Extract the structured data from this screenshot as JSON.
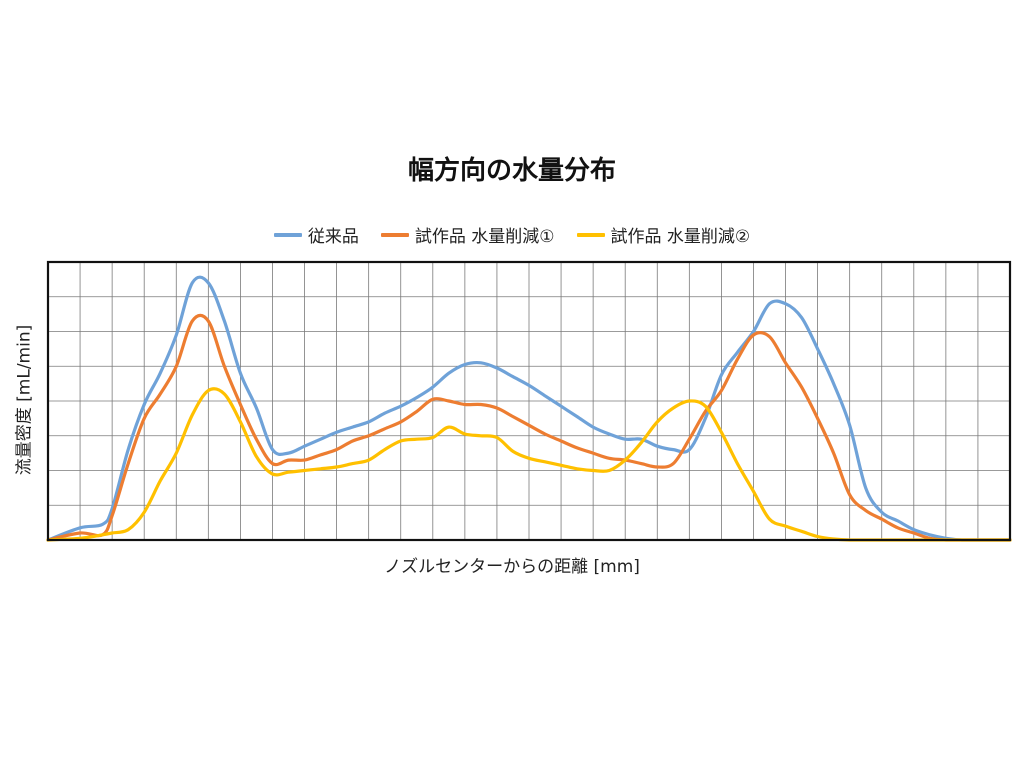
{
  "chart_data": {
    "type": "line",
    "title": "幅方向の水量分布",
    "xlabel": "ノズルセンターからの距離 [mm]",
    "ylabel": "流量密度 [mL/min]",
    "xlim": [
      0,
      30
    ],
    "ylim": [
      0,
      8
    ],
    "grid": true,
    "legend_position": "top",
    "series": [
      {
        "name": "従来品",
        "color": "#6fa2d8",
        "x": [
          0,
          1,
          1.7,
          2,
          2.5,
          3,
          3.5,
          4,
          4.5,
          5,
          5.5,
          6,
          6.5,
          7,
          7.5,
          8,
          8.5,
          9,
          9.5,
          10,
          10.5,
          11,
          11.5,
          12,
          12.5,
          13,
          13.5,
          14,
          14.5,
          15,
          15.5,
          16,
          16.5,
          17,
          17.5,
          18,
          18.5,
          19,
          19.5,
          20,
          20.5,
          21,
          21.5,
          22,
          22.5,
          23,
          23.5,
          24,
          24.5,
          25,
          25.5,
          26,
          26.5,
          27,
          27.5,
          28,
          28.5,
          29,
          29.5,
          30
        ],
        "y": [
          0,
          0.35,
          0.45,
          0.9,
          2.6,
          3.9,
          4.8,
          5.9,
          7.4,
          7.4,
          6.3,
          4.8,
          3.8,
          2.6,
          2.5,
          2.7,
          2.9,
          3.1,
          3.25,
          3.4,
          3.65,
          3.85,
          4.1,
          4.4,
          4.8,
          5.05,
          5.1,
          4.95,
          4.7,
          4.45,
          4.15,
          3.85,
          3.55,
          3.25,
          3.05,
          2.9,
          2.9,
          2.7,
          2.6,
          2.6,
          3.5,
          4.75,
          5.4,
          6.0,
          6.8,
          6.8,
          6.4,
          5.5,
          4.5,
          3.3,
          1.5,
          0.8,
          0.55,
          0.3,
          0.15,
          0.05,
          0,
          0,
          0,
          0
        ],
        "x_trim": 30
      },
      {
        "name": "試作品 水量削減①",
        "color": "#ed7d31",
        "x": [
          0,
          1,
          1.7,
          2,
          2.5,
          3,
          3.5,
          4,
          4.5,
          5,
          5.5,
          6,
          6.5,
          7,
          7.5,
          8,
          8.5,
          9,
          9.5,
          10,
          10.5,
          11,
          11.5,
          12,
          12.5,
          13,
          13.5,
          14,
          14.5,
          15,
          15.5,
          16,
          16.5,
          17,
          17.5,
          18,
          18.5,
          19,
          19.5,
          20,
          20.5,
          21,
          21.5,
          22,
          22.5,
          23,
          23.5,
          24,
          24.5,
          25,
          25.5,
          26,
          26.5,
          27,
          27.5,
          28,
          28.5,
          29,
          29.5,
          30
        ],
        "y": [
          0,
          0.2,
          0.15,
          0.7,
          2.2,
          3.5,
          4.2,
          5.0,
          6.3,
          6.3,
          5.0,
          3.9,
          2.9,
          2.2,
          2.3,
          2.3,
          2.45,
          2.6,
          2.85,
          3.0,
          3.2,
          3.4,
          3.7,
          4.05,
          4.0,
          3.9,
          3.9,
          3.8,
          3.55,
          3.3,
          3.05,
          2.85,
          2.65,
          2.5,
          2.35,
          2.3,
          2.2,
          2.1,
          2.2,
          2.9,
          3.7,
          4.3,
          5.2,
          5.9,
          5.85,
          5.1,
          4.4,
          3.5,
          2.5,
          1.3,
          0.85,
          0.6,
          0.35,
          0.2,
          0.05,
          0,
          0,
          0,
          0,
          0
        ],
        "x_trim": 30
      },
      {
        "name": "試作品 水量削減②",
        "color": "#ffc000",
        "x": [
          0,
          1,
          1.7,
          2,
          2.5,
          3,
          3.5,
          4,
          4.5,
          5,
          5.5,
          6,
          6.5,
          7,
          7.5,
          8,
          8.5,
          9,
          9.5,
          10,
          10.5,
          11,
          11.5,
          12,
          12.5,
          13,
          13.5,
          14,
          14.5,
          15,
          15.5,
          16,
          16.5,
          17,
          17.5,
          18,
          18.5,
          19,
          19.5,
          20,
          20.5,
          21,
          21.5,
          22,
          22.5,
          23,
          23.5,
          24,
          24.5,
          25,
          25.5,
          26,
          26.5,
          27,
          27.5,
          28,
          28.5,
          29,
          29.5,
          30
        ],
        "y": [
          0,
          0.05,
          0.15,
          0.2,
          0.3,
          0.8,
          1.7,
          2.5,
          3.6,
          4.3,
          4.2,
          3.4,
          2.4,
          1.9,
          1.95,
          2.0,
          2.05,
          2.1,
          2.2,
          2.3,
          2.6,
          2.85,
          2.9,
          2.95,
          3.25,
          3.05,
          3.0,
          2.95,
          2.55,
          2.35,
          2.25,
          2.15,
          2.05,
          2.0,
          2.0,
          2.3,
          2.8,
          3.4,
          3.8,
          4.0,
          3.85,
          3.1,
          2.2,
          1.4,
          0.6,
          0.4,
          0.25,
          0.1,
          0.03,
          0,
          0,
          0,
          0,
          0,
          0,
          0,
          0,
          0,
          0,
          0
        ],
        "x_trim": 30
      }
    ]
  }
}
